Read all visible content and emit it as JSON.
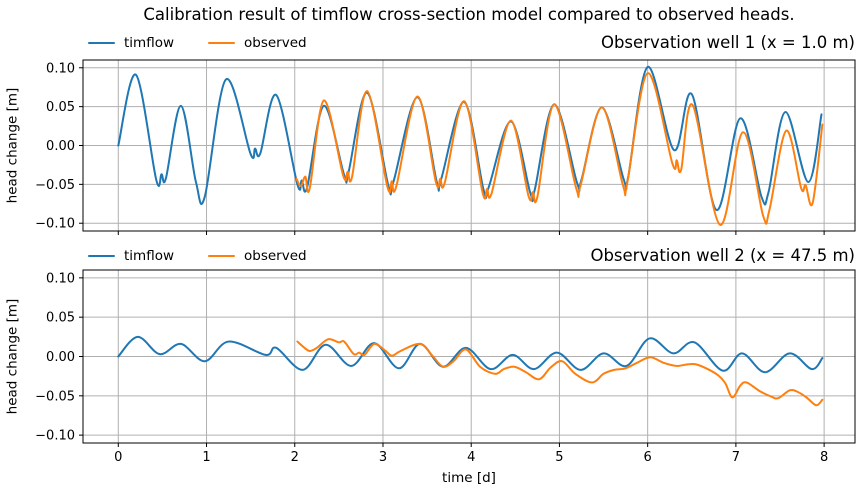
{
  "figure": {
    "title": "Calibration result of timflow cross-section model compared to observed heads.",
    "background": "#ffffff"
  },
  "colors": {
    "timflow": "#1f77b4",
    "observed": "#ff7f0e",
    "grid": "#b0b0b0",
    "spine": "#000000",
    "text": "#000000"
  },
  "chart_data": [
    {
      "type": "line",
      "title": "Observation well 1 (x = 1.0 m)",
      "ylabel": "head change [m]",
      "xlabel": "",
      "xlim": [
        -0.4,
        8.35
      ],
      "ylim": [
        -0.11,
        0.11
      ],
      "xticks": [
        0,
        1,
        2,
        3,
        4,
        5,
        6,
        7,
        8
      ],
      "xticklabels": [],
      "yticks": [
        0.1,
        0.05,
        0,
        -0.05,
        -0.1
      ],
      "yticklabels": [
        "0.10",
        "0.05",
        "0.00",
        "−0.05",
        "−0.10"
      ],
      "grid": true,
      "legend": [
        "timflow",
        "observed"
      ],
      "legend_position": "above left",
      "series": [
        {
          "name": "timflow",
          "color_key": "timflow",
          "points": [
            [
              0.0,
              0.0
            ],
            [
              0.2,
              0.091
            ],
            [
              0.43,
              -0.044
            ],
            [
              0.49,
              -0.037
            ],
            [
              0.54,
              -0.042
            ],
            [
              0.71,
              0.051
            ],
            [
              0.88,
              -0.047
            ],
            [
              0.98,
              -0.066
            ],
            [
              1.22,
              0.085
            ],
            [
              1.5,
              -0.011
            ],
            [
              1.55,
              -0.004
            ],
            [
              1.61,
              -0.01
            ],
            [
              1.79,
              0.065
            ],
            [
              2.03,
              -0.05
            ],
            [
              2.08,
              -0.045
            ],
            [
              2.14,
              -0.054
            ],
            [
              2.33,
              0.051
            ],
            [
              2.56,
              -0.038
            ],
            [
              2.61,
              -0.034
            ],
            [
              2.82,
              0.068
            ],
            [
              3.06,
              -0.051
            ],
            [
              3.12,
              -0.046
            ],
            [
              3.39,
              0.062
            ],
            [
              3.61,
              -0.047
            ],
            [
              3.66,
              -0.043
            ],
            [
              3.92,
              0.056
            ],
            [
              4.14,
              -0.057
            ],
            [
              4.2,
              -0.053
            ],
            [
              4.45,
              0.031
            ],
            [
              4.67,
              -0.061
            ],
            [
              4.72,
              -0.057
            ],
            [
              4.94,
              0.053
            ],
            [
              5.2,
              -0.048
            ],
            [
              5.25,
              -0.044
            ],
            [
              5.48,
              0.049
            ],
            [
              5.73,
              -0.044
            ],
            [
              5.78,
              -0.04
            ],
            [
              6.0,
              0.101
            ],
            [
              6.3,
              -0.006
            ],
            [
              6.5,
              0.066
            ],
            [
              6.78,
              -0.083
            ],
            [
              7.05,
              0.035
            ],
            [
              7.29,
              -0.066
            ],
            [
              7.37,
              -0.06
            ],
            [
              7.56,
              0.043
            ],
            [
              7.82,
              -0.047
            ],
            [
              7.97,
              0.04
            ]
          ]
        },
        {
          "name": "observed",
          "color_key": "observed",
          "points": [
            [
              2.02,
              -0.043
            ],
            [
              2.07,
              -0.052
            ],
            [
              2.12,
              -0.04
            ],
            [
              2.17,
              -0.055
            ],
            [
              2.33,
              0.058
            ],
            [
              2.55,
              -0.039
            ],
            [
              2.6,
              -0.034
            ],
            [
              2.65,
              -0.04
            ],
            [
              2.82,
              0.07
            ],
            [
              3.05,
              -0.053
            ],
            [
              3.1,
              -0.046
            ],
            [
              3.15,
              -0.053
            ],
            [
              3.39,
              0.063
            ],
            [
              3.6,
              -0.047
            ],
            [
              3.65,
              -0.043
            ],
            [
              3.7,
              -0.048
            ],
            [
              3.92,
              0.057
            ],
            [
              4.13,
              -0.061
            ],
            [
              4.18,
              -0.056
            ],
            [
              4.23,
              -0.062
            ],
            [
              4.45,
              0.032
            ],
            [
              4.65,
              -0.065
            ],
            [
              4.7,
              -0.06
            ],
            [
              4.75,
              -0.066
            ],
            [
              4.94,
              0.053
            ],
            [
              5.19,
              -0.055
            ],
            [
              5.24,
              -0.051
            ],
            [
              5.48,
              0.049
            ],
            [
              5.72,
              -0.051
            ],
            [
              5.77,
              -0.047
            ],
            [
              6.0,
              0.093
            ],
            [
              6.28,
              -0.023
            ],
            [
              6.33,
              -0.019
            ],
            [
              6.38,
              -0.031
            ],
            [
              6.51,
              0.052
            ],
            [
              6.82,
              -0.102
            ],
            [
              7.08,
              0.017
            ],
            [
              7.31,
              -0.091
            ],
            [
              7.38,
              -0.083
            ],
            [
              7.57,
              0.019
            ],
            [
              7.74,
              -0.055
            ],
            [
              7.79,
              -0.051
            ],
            [
              7.87,
              -0.074
            ],
            [
              7.98,
              0.027
            ]
          ]
        }
      ]
    },
    {
      "type": "line",
      "title": "Observation well 2 (x = 47.5 m)",
      "ylabel": "head change [m]",
      "xlabel": "time [d]",
      "xlim": [
        -0.4,
        8.35
      ],
      "ylim": [
        -0.11,
        0.11
      ],
      "xticks": [
        0,
        1,
        2,
        3,
        4,
        5,
        6,
        7,
        8
      ],
      "xticklabels": [
        "0",
        "1",
        "2",
        "3",
        "4",
        "5",
        "6",
        "7",
        "8"
      ],
      "yticks": [
        0.1,
        0.05,
        0,
        -0.05,
        -0.1
      ],
      "yticklabels": [
        "0.10",
        "0.05",
        "0.00",
        "−0.05",
        "−0.10"
      ],
      "grid": true,
      "legend": [
        "timflow",
        "observed"
      ],
      "legend_position": "above left",
      "series": [
        {
          "name": "timflow",
          "color_key": "timflow",
          "points": [
            [
              0.0,
              0.0
            ],
            [
              0.22,
              0.025
            ],
            [
              0.47,
              0.003
            ],
            [
              0.71,
              0.016
            ],
            [
              0.98,
              -0.006
            ],
            [
              1.25,
              0.019
            ],
            [
              1.67,
              0.002
            ],
            [
              1.79,
              0.011
            ],
            [
              2.09,
              -0.017
            ],
            [
              2.35,
              0.015
            ],
            [
              2.64,
              -0.012
            ],
            [
              2.9,
              0.017
            ],
            [
              3.18,
              -0.015
            ],
            [
              3.42,
              0.016
            ],
            [
              3.68,
              -0.013
            ],
            [
              3.94,
              0.011
            ],
            [
              4.22,
              -0.016
            ],
            [
              4.47,
              0.002
            ],
            [
              4.71,
              -0.016
            ],
            [
              4.97,
              0.005
            ],
            [
              5.24,
              -0.017
            ],
            [
              5.5,
              0.004
            ],
            [
              5.76,
              -0.012
            ],
            [
              6.02,
              0.023
            ],
            [
              6.29,
              0.004
            ],
            [
              6.53,
              0.018
            ],
            [
              6.85,
              -0.018
            ],
            [
              7.07,
              0.004
            ],
            [
              7.33,
              -0.02
            ],
            [
              7.61,
              0.004
            ],
            [
              7.86,
              -0.016
            ],
            [
              7.98,
              -0.002
            ]
          ]
        },
        {
          "name": "observed",
          "color_key": "observed",
          "points": [
            [
              2.03,
              0.019
            ],
            [
              2.1,
              0.012
            ],
            [
              2.17,
              0.007
            ],
            [
              2.25,
              0.011
            ],
            [
              2.38,
              0.022
            ],
            [
              2.5,
              0.018
            ],
            [
              2.56,
              0.019
            ],
            [
              2.67,
              0.003
            ],
            [
              2.73,
              0.005
            ],
            [
              2.79,
              0.002
            ],
            [
              2.9,
              0.016
            ],
            [
              3.02,
              0.008
            ],
            [
              3.1,
              0.001
            ],
            [
              3.2,
              0.007
            ],
            [
              3.42,
              0.016
            ],
            [
              3.56,
              0.001
            ],
            [
              3.68,
              -0.013
            ],
            [
              3.8,
              -0.006
            ],
            [
              3.94,
              0.009
            ],
            [
              4.1,
              -0.013
            ],
            [
              4.27,
              -0.022
            ],
            [
              4.37,
              -0.016
            ],
            [
              4.49,
              -0.013
            ],
            [
              4.62,
              -0.02
            ],
            [
              4.77,
              -0.029
            ],
            [
              4.9,
              -0.014
            ],
            [
              5.03,
              -0.006
            ],
            [
              5.18,
              -0.022
            ],
            [
              5.37,
              -0.033
            ],
            [
              5.5,
              -0.022
            ],
            [
              5.62,
              -0.017
            ],
            [
              5.75,
              -0.015
            ],
            [
              5.88,
              -0.008
            ],
            [
              6.03,
              -0.001
            ],
            [
              6.18,
              -0.008
            ],
            [
              6.33,
              -0.012
            ],
            [
              6.45,
              -0.01
            ],
            [
              6.55,
              -0.01
            ],
            [
              6.68,
              -0.016
            ],
            [
              6.8,
              -0.024
            ],
            [
              6.88,
              -0.034
            ],
            [
              6.96,
              -0.052
            ],
            [
              7.05,
              -0.037
            ],
            [
              7.12,
              -0.033
            ],
            [
              7.27,
              -0.044
            ],
            [
              7.4,
              -0.051
            ],
            [
              7.48,
              -0.053
            ],
            [
              7.61,
              -0.043
            ],
            [
              7.7,
              -0.045
            ],
            [
              7.8,
              -0.052
            ],
            [
              7.91,
              -0.062
            ],
            [
              7.98,
              -0.055
            ]
          ]
        }
      ]
    }
  ]
}
